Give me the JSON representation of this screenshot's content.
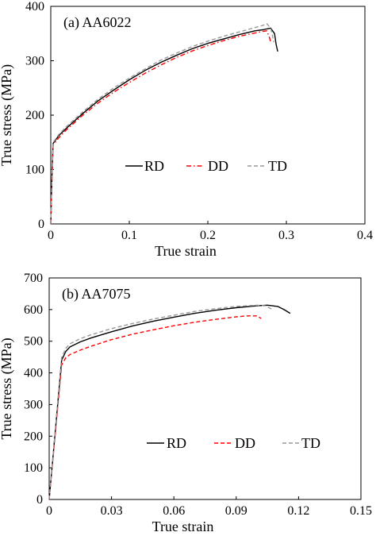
{
  "chart_data": [
    {
      "type": "line",
      "panel_label": "(a) AA6022",
      "xlabel": "True strain",
      "ylabel": "True stress (MPa)",
      "xlim": [
        0,
        0.4
      ],
      "ylim": [
        0,
        400
      ],
      "xticks": [
        0,
        0.1,
        0.2,
        0.3,
        0.4
      ],
      "xtick_labels": [
        "0",
        "0.1",
        "0.2",
        "0.3",
        "0.4"
      ],
      "yticks": [
        0,
        100,
        200,
        300,
        400
      ],
      "ytick_labels": [
        "0",
        "100",
        "200",
        "300",
        "400"
      ],
      "legend_position": "middle-center",
      "grid": false,
      "series": [
        {
          "name": "RD",
          "color": "#000000",
          "dash": "solid",
          "x": [
            0,
            0.001,
            0.002,
            0.003,
            0.01,
            0.02,
            0.04,
            0.06,
            0.08,
            0.1,
            0.12,
            0.14,
            0.16,
            0.18,
            0.2,
            0.22,
            0.24,
            0.26,
            0.27,
            0.28,
            0.285,
            0.287,
            0.289
          ],
          "y": [
            0,
            60,
            110,
            148,
            162,
            176,
            202,
            226,
            246,
            265,
            282,
            297,
            310,
            322,
            332,
            340,
            348,
            355,
            357,
            360,
            350,
            330,
            317
          ]
        },
        {
          "name": "DD",
          "color": "#ff0000",
          "dash": "dashdot",
          "x": [
            0,
            0.001,
            0.002,
            0.003,
            0.01,
            0.02,
            0.04,
            0.06,
            0.08,
            0.1,
            0.12,
            0.14,
            0.16,
            0.18,
            0.2,
            0.22,
            0.24,
            0.26,
            0.27,
            0.275,
            0.278,
            0.28
          ],
          "y": [
            0,
            55,
            105,
            145,
            158,
            173,
            199,
            222,
            242,
            260,
            277,
            292,
            306,
            318,
            328,
            337,
            345,
            351,
            354,
            355,
            345,
            335
          ]
        },
        {
          "name": "TD",
          "color": "#999999",
          "dash": "dashed",
          "x": [
            0,
            0.001,
            0.002,
            0.003,
            0.01,
            0.02,
            0.04,
            0.06,
            0.08,
            0.1,
            0.12,
            0.14,
            0.16,
            0.18,
            0.2,
            0.22,
            0.24,
            0.26,
            0.27,
            0.275,
            0.28,
            0.282,
            0.284
          ],
          "y": [
            0,
            60,
            112,
            150,
            164,
            179,
            205,
            229,
            250,
            268,
            285,
            301,
            314,
            326,
            336,
            345,
            353,
            361,
            365,
            368,
            360,
            348,
            334
          ]
        }
      ]
    },
    {
      "type": "line",
      "panel_label": "(b) AA7075",
      "xlabel": "True strain",
      "ylabel": "True stress (MPa)",
      "xlim": [
        0,
        0.15
      ],
      "ylim": [
        0,
        700
      ],
      "xticks": [
        0,
        0.03,
        0.06,
        0.09,
        0.12,
        0.15
      ],
      "xtick_labels": [
        "0",
        "0.03",
        "0.06",
        "0.09",
        "0.12",
        "0.15"
      ],
      "yticks": [
        0,
        100,
        200,
        300,
        400,
        500,
        600,
        700
      ],
      "ytick_labels": [
        "0",
        "100",
        "200",
        "300",
        "400",
        "500",
        "600",
        "700"
      ],
      "legend_position": "lower-center",
      "grid": false,
      "series": [
        {
          "name": "RD",
          "color": "#000000",
          "dash": "solid",
          "x": [
            0,
            0.006,
            0.008,
            0.01,
            0.015,
            0.02,
            0.03,
            0.04,
            0.05,
            0.06,
            0.07,
            0.08,
            0.09,
            0.1,
            0.105,
            0.11,
            0.113,
            0.116
          ],
          "y": [
            0,
            440,
            468,
            482,
            498,
            510,
            530,
            548,
            563,
            576,
            588,
            598,
            606,
            612,
            614,
            610,
            600,
            588
          ]
        },
        {
          "name": "DD",
          "color": "#ff0000",
          "dash": "dashed",
          "x": [
            0,
            0.006,
            0.008,
            0.01,
            0.015,
            0.02,
            0.03,
            0.04,
            0.05,
            0.06,
            0.07,
            0.08,
            0.09,
            0.095,
            0.1,
            0.102
          ],
          "y": [
            0,
            425,
            448,
            458,
            472,
            484,
            505,
            522,
            536,
            549,
            560,
            569,
            577,
            580,
            580,
            572
          ]
        },
        {
          "name": "TD",
          "color": "#999999",
          "dash": "dashed",
          "x": [
            0,
            0.006,
            0.008,
            0.01,
            0.015,
            0.02,
            0.03,
            0.04,
            0.05,
            0.06,
            0.07,
            0.08,
            0.09,
            0.1,
            0.104,
            0.107
          ],
          "y": [
            0,
            448,
            478,
            492,
            508,
            520,
            540,
            556,
            570,
            582,
            594,
            603,
            610,
            614,
            612,
            602
          ]
        }
      ]
    }
  ]
}
